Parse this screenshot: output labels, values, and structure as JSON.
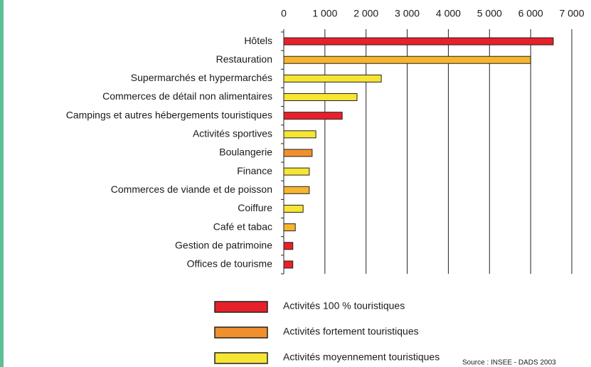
{
  "chart_data": {
    "type": "barh",
    "categories": [
      "Hôtels",
      "Restauration",
      "Supermarchés et hypermarchés",
      "Commerces de détail non alimentaires",
      "Campings et autres hébergements touristiques",
      "Activités sportives",
      "Boulangerie",
      "Finance",
      "Commerces de viande et de poisson",
      "Coiffure",
      "Café et tabac",
      "Gestion de patrimoine",
      "Offices de tourisme"
    ],
    "values": [
      6550,
      6000,
      2370,
      1780,
      1420,
      780,
      690,
      620,
      620,
      470,
      280,
      220,
      220
    ],
    "colors": [
      "#e8202a",
      "#f6b52d",
      "#f7e533",
      "#f7e533",
      "#e8202a",
      "#f7e533",
      "#f0902c",
      "#f7e533",
      "#f6b52d",
      "#f7e533",
      "#f6b52d",
      "#e8202a",
      "#e8202a"
    ],
    "xlim": [
      0,
      7000
    ],
    "xticks": [
      0,
      {
        "value": 1000,
        "label": "1 000"
      },
      {
        "value": 2000,
        "label": "2 000"
      },
      {
        "value": 3000,
        "label": "3 000"
      },
      {
        "value": 4000,
        "label": "4 000"
      },
      {
        "value": 5000,
        "label": "5 000"
      },
      {
        "value": 6000,
        "label": "6 000"
      },
      {
        "value": 7000,
        "label": "7 000"
      }
    ],
    "grid": true,
    "legend": [
      {
        "name": "Activités 100 % touristiques",
        "color": "#e8202a"
      },
      {
        "name": "Activités fortement touristiques",
        "color": "#f0902c"
      },
      {
        "name": "Activités moyennement touristiques",
        "color": "#f7e533"
      }
    ],
    "source": "Source : INSEE - DADS 2003"
  }
}
